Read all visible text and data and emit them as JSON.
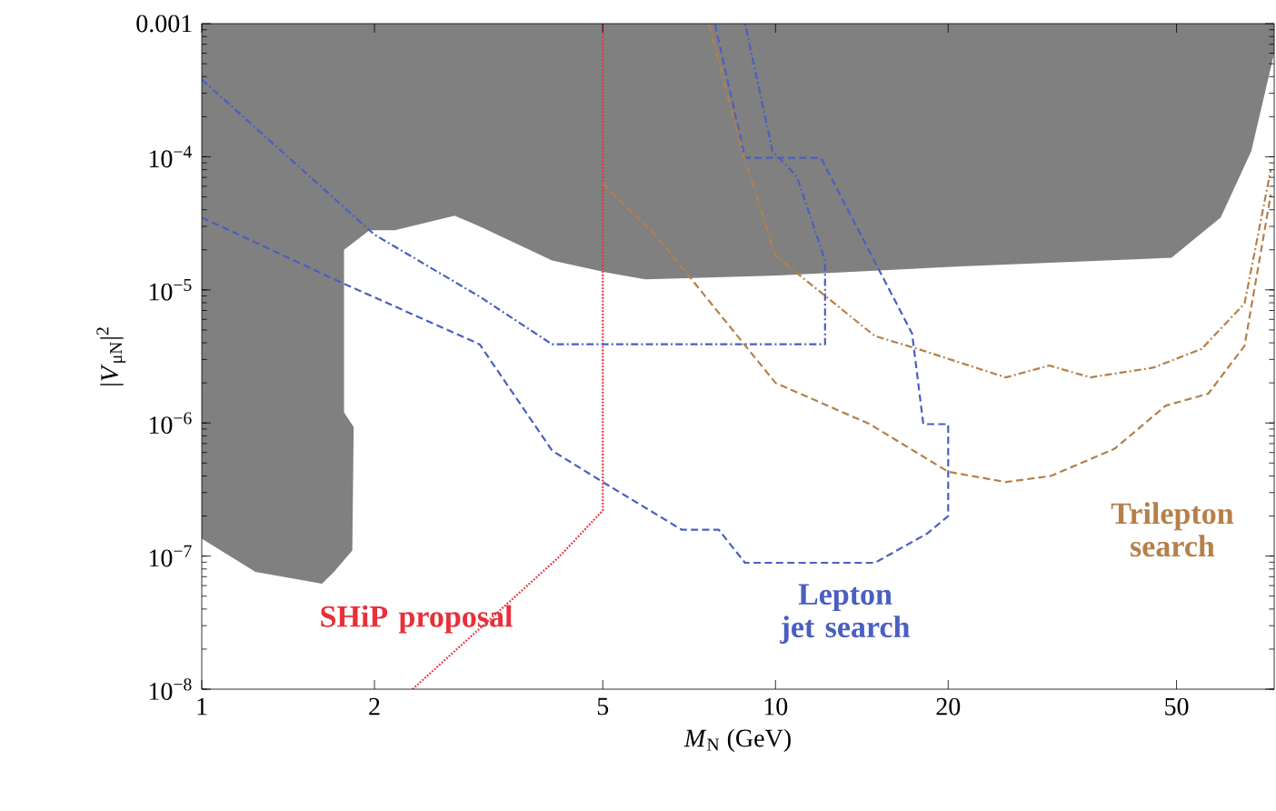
{
  "chart_data": {
    "type": "line",
    "xlabel": "*M*$_{N}$ (GeV)",
    "ylabel": "|*V*$_{μN}$|$^{2}$",
    "log": "xy",
    "legend": false,
    "grid": false,
    "xlim": [
      1,
      74
    ],
    "ylim": [
      1e-08,
      0.001
    ],
    "xticks": [
      1,
      2,
      5,
      10,
      20,
      50
    ],
    "yticks": [
      {
        "value": 1e-08,
        "label": "10$^{−8}$"
      },
      {
        "value": 1e-07,
        "label": "10$^{−7}$"
      },
      {
        "value": 1e-06,
        "label": "10$^{−6}$"
      },
      {
        "value": 1e-05,
        "label": "10$^{−5}$"
      },
      {
        "value": 0.0001,
        "label": "10$^{−4}$"
      },
      0.001
    ],
    "series": [
      {
        "type": "area",
        "color": "#808080",
        "x": [
          1,
          1.24,
          1.62,
          1.7,
          1.83,
          1.84,
          1.77,
          1.77,
          1.96,
          2.17,
          2.76,
          3.05,
          4.08,
          5.08,
          5.93,
          10.1,
          21,
          49,
          59.7,
          67.5,
          74,
          74,
          1
        ],
        "values": [
          1.35e-07,
          7.6e-08,
          6.2e-08,
          7.6e-08,
          1.1e-07,
          9.3e-07,
          1.2e-06,
          2e-05,
          2.8e-05,
          2.8e-05,
          3.6e-05,
          3e-05,
          1.66e-05,
          1.35e-05,
          1.2e-05,
          1.28e-05,
          1.5e-05,
          1.74e-05,
          3.5e-05,
          0.00011,
          0.0006,
          0.001,
          0.001
        ]
      },
      {
        "name": "SHiP proposal",
        "color": "#e8303a",
        "line_style": "dotted",
        "x": [
          2.33,
          4.19,
          5,
          5
        ],
        "values": [
          1e-08,
          9.8e-08,
          2.2e-07,
          0.001
        ]
      },
      {
        "name": "Lepton jet search",
        "color": "#4a5fc1",
        "line_style": "dashdot",
        "x": [
          1,
          2,
          3.05,
          4.08,
          12.2,
          12.2,
          10.9,
          9.88,
          8.85
        ],
        "values": [
          0.00038,
          2.6e-05,
          8.9e-06,
          3.9e-06,
          3.9e-06,
          1.66e-05,
          7.1e-05,
          0.00011,
          0.001
        ]
      },
      {
        "color": "#4a5fc1",
        "line_style": "dashed",
        "x": [
          1,
          1.74,
          3.05,
          4.08,
          5,
          6.86,
          7.96,
          8.85,
          14.9,
          18.4,
          20,
          20,
          18.1,
          17.3,
          12,
          8.85,
          7.84
        ],
        "values": [
          3.5e-05,
          1.15e-05,
          3.9e-06,
          6.2e-07,
          3.6e-07,
          1.58e-07,
          1.58e-07,
          8.9e-08,
          8.9e-08,
          1.48e-07,
          2e-07,
          9.8e-07,
          9.8e-07,
          4.7e-06,
          9.8e-05,
          9.8e-05,
          0.001
        ]
      },
      {
        "name": "Trilepton search",
        "color": "#b5804a",
        "line_style": "dashdot",
        "x": [
          7.66,
          8.75,
          10,
          14.9,
          17.7,
          25.2,
          30,
          35.4,
          45.5,
          55.3,
          65.7,
          73
        ],
        "values": [
          0.001,
          0.00011,
          1.8e-05,
          4.5e-06,
          3.6e-06,
          2.2e-06,
          2.7e-06,
          2.2e-06,
          2.6e-06,
          3.6e-06,
          7.9e-06,
          8e-05
        ]
      },
      {
        "color": "#b5804a",
        "line_style": "dashed",
        "x": [
          5,
          6.22,
          10,
          14.6,
          20,
          25.2,
          30.2,
          39,
          47.9,
          56.8,
          65.7,
          73
        ],
        "values": [
          6.3e-05,
          2.5e-05,
          2e-06,
          9.8e-07,
          4.3e-07,
          3.6e-07,
          4e-07,
          6.4e-07,
          1.35e-06,
          1.66e-06,
          3.8e-06,
          5.2e-05
        ]
      }
    ]
  }
}
